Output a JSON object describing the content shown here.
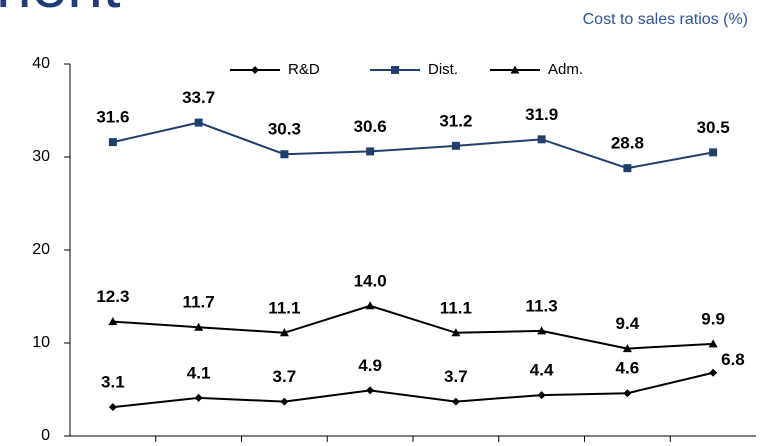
{
  "page_title": "nent",
  "chart_data": {
    "type": "line",
    "subtitle": "Cost to sales ratios (%)",
    "categories": [
      null,
      null,
      null,
      null,
      null,
      null,
      null,
      null
    ],
    "series": [
      {
        "name": "R&D",
        "color": "#000000",
        "marker": "diamond",
        "values": [
          3.1,
          4.1,
          3.7,
          4.9,
          3.7,
          4.4,
          4.6,
          6.8
        ]
      },
      {
        "name": "Dist.",
        "color": "#1f3f6e",
        "marker": "square",
        "values": [
          31.6,
          33.7,
          30.3,
          30.6,
          31.2,
          31.9,
          28.8,
          30.5
        ]
      },
      {
        "name": "Adm.",
        "color": "#000000",
        "marker": "triangle",
        "values": [
          12.3,
          11.7,
          11.1,
          14,
          11.1,
          11.3,
          9.4,
          9.9
        ],
        "value_labels": [
          "12.3",
          "11.7",
          "11.1",
          "14.0",
          "11.1",
          "11.3",
          "9.4",
          "9.9"
        ]
      }
    ],
    "ylim": [
      0,
      40
    ],
    "yticks": [
      0,
      10,
      20,
      30,
      40
    ],
    "grid": false,
    "legend": "top"
  }
}
